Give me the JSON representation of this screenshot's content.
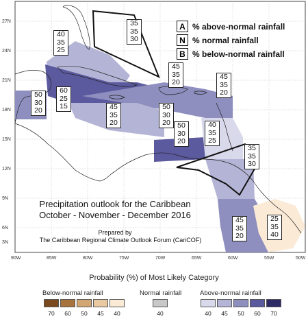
{
  "map": {
    "title_line1": "Precipitation outlook for the Caribbean",
    "title_line2": "October - November - December 2016",
    "prepared_by": "Prepared by",
    "prepared_org": "The Caribbean Regional Climate Outlook Forum (CariCOF)",
    "lat_labels": [
      "27N",
      "24N",
      "21N",
      "18N",
      "15N",
      "12N",
      "9N",
      "6N",
      "3N"
    ],
    "lon_labels": [
      "90W",
      "85W",
      "80W",
      "75W",
      "70W",
      "65W",
      "60W",
      "55W",
      "50W"
    ]
  },
  "key": {
    "A": {
      "letter": "A",
      "text": "% above-normal rainfall"
    },
    "N": {
      "letter": "N",
      "text": "% normal rainfall"
    },
    "B": {
      "letter": "B",
      "text": "% below-normal rainfall"
    }
  },
  "boxes": [
    {
      "id": "bahamas-north",
      "values": [
        "35",
        "35",
        "30"
      ]
    },
    {
      "id": "gulf-cuba",
      "values": [
        "40",
        "35",
        "25"
      ]
    },
    {
      "id": "central-america-north",
      "values": [
        "50",
        "30",
        "20"
      ]
    },
    {
      "id": "cuba-jamaica",
      "values": [
        "60",
        "25",
        "15"
      ]
    },
    {
      "id": "jamaica-south",
      "values": [
        "45",
        "35",
        "20"
      ]
    },
    {
      "id": "hispaniola",
      "values": [
        "50",
        "30",
        "20"
      ]
    },
    {
      "id": "bahamas-south",
      "values": [
        "45",
        "35",
        "20"
      ]
    },
    {
      "id": "leewards-north",
      "values": [
        "45",
        "35",
        "20"
      ]
    },
    {
      "id": "caribbean-central",
      "values": [
        "50",
        "30",
        "20"
      ]
    },
    {
      "id": "leewards",
      "values": [
        "40",
        "35",
        "25"
      ]
    },
    {
      "id": "windwards",
      "values": [
        "35",
        "35",
        "30"
      ]
    },
    {
      "id": "guianas",
      "values": [
        "45",
        "35",
        "20"
      ]
    },
    {
      "id": "french-guiana",
      "values": [
        "25",
        "35",
        "40"
      ]
    }
  ],
  "legend": {
    "title": "Probability (%) of Most Likely Category",
    "below_label": "Below-normal rainfall",
    "normal_label": "Normal rainfall",
    "above_label": "Above-normal rainfall",
    "below_ticks": [
      "70",
      "60",
      "50",
      "45",
      "40"
    ],
    "normal_ticks": [
      "40"
    ],
    "above_ticks": [
      "40",
      "45",
      "50",
      "60",
      "70"
    ],
    "below_colors": [
      "#7a4a1e",
      "#a8743e",
      "#d2a672",
      "#e9c9a2",
      "#faead6"
    ],
    "normal_color": "#c8c8c8",
    "above_colors": [
      "#d9d9ec",
      "#b4b4d6",
      "#8e8ebf",
      "#5c5a9e",
      "#2e2a66"
    ]
  }
}
